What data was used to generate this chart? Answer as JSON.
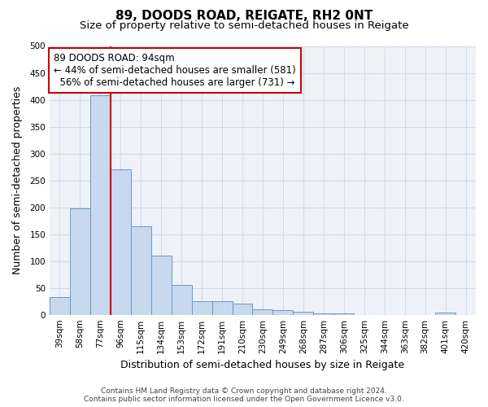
{
  "title": "89, DOODS ROAD, REIGATE, RH2 0NT",
  "subtitle": "Size of property relative to semi-detached houses in Reigate",
  "xlabel": "Distribution of semi-detached houses by size in Reigate",
  "ylabel": "Number of semi-detached properties",
  "categories": [
    "39sqm",
    "58sqm",
    "77sqm",
    "96sqm",
    "115sqm",
    "134sqm",
    "153sqm",
    "172sqm",
    "191sqm",
    "210sqm",
    "230sqm",
    "249sqm",
    "268sqm",
    "287sqm",
    "306sqm",
    "325sqm",
    "344sqm",
    "363sqm",
    "382sqm",
    "401sqm",
    "420sqm"
  ],
  "values": [
    33,
    198,
    408,
    270,
    165,
    110,
    55,
    26,
    25,
    20,
    10,
    8,
    5,
    3,
    2,
    0,
    0,
    0,
    0,
    4,
    0
  ],
  "bar_color": "#c8d8ef",
  "bar_edge_color": "#6699cc",
  "grid_color": "#d0dce8",
  "background_color": "#ffffff",
  "plot_bg_color": "#eef2f8",
  "annotation_box_color": "#ffffff",
  "annotation_border_color": "#cc0000",
  "property_line_color": "#cc0000",
  "property_label": "89 DOODS ROAD: 94sqm",
  "pct_smaller": 44,
  "count_smaller": 581,
  "pct_larger": 56,
  "count_larger": 731,
  "property_bar_index": 3,
  "ylim": [
    0,
    500
  ],
  "yticks": [
    0,
    50,
    100,
    150,
    200,
    250,
    300,
    350,
    400,
    450,
    500
  ],
  "footer_line1": "Contains HM Land Registry data © Crown copyright and database right 2024.",
  "footer_line2": "Contains public sector information licensed under the Open Government Licence v3.0.",
  "title_fontsize": 11,
  "subtitle_fontsize": 9.5,
  "axis_label_fontsize": 9,
  "tick_fontsize": 7.5,
  "annotation_fontsize": 8.5,
  "footer_fontsize": 6.5
}
